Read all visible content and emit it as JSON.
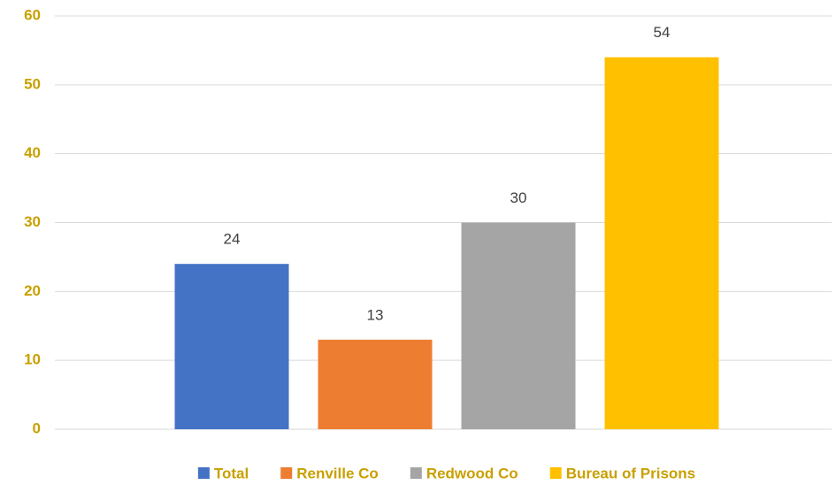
{
  "chart_data": {
    "type": "bar",
    "categories": [
      null
    ],
    "series": [
      {
        "name": "Total",
        "color": "#4472c4",
        "values": [
          24
        ]
      },
      {
        "name": "Renville Co",
        "color": "#ed7d31",
        "values": [
          13
        ]
      },
      {
        "name": "Redwood Co",
        "color": "#a5a5a5",
        "values": [
          30
        ]
      },
      {
        "name": "Bureau of Prisons",
        "color": "#ffc000",
        "values": [
          54
        ]
      }
    ],
    "ylim": [
      0,
      60
    ],
    "yticks": [
      0,
      10,
      20,
      30,
      40,
      50,
      60
    ],
    "grid": true,
    "legend": "bottom"
  }
}
